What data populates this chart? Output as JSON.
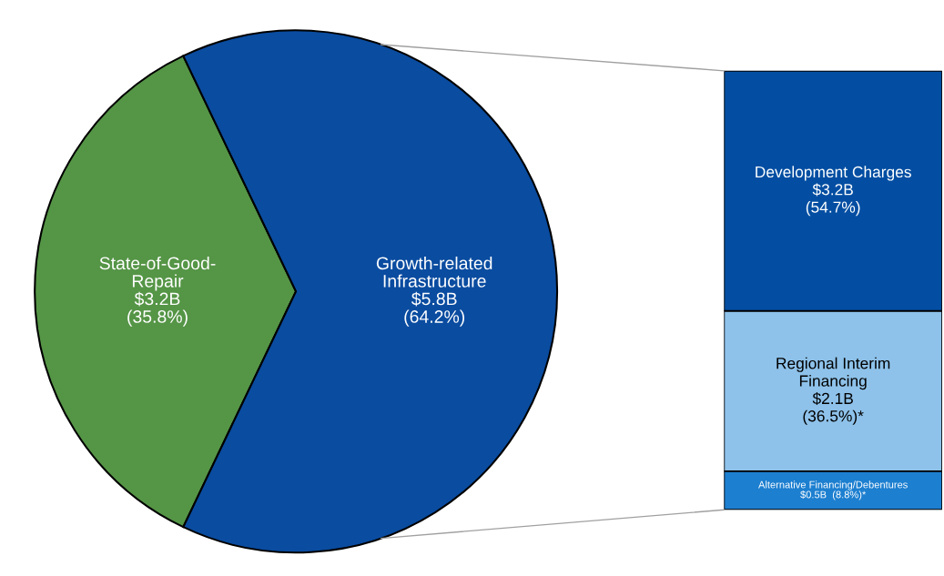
{
  "chart_data": [
    {
      "type": "pie",
      "categories": [
        "State-of-Good-\nRepair",
        "Growth-related\nInfrastructure"
      ],
      "values": [
        35.8,
        64.2
      ],
      "colors": [
        "#559546",
        "#0a4ca0"
      ],
      "value_labels": [
        "$3.2B\n(35.8%)",
        "$5.8B\n(64.2%)"
      ],
      "legend": false
    },
    {
      "type": "bar",
      "stacked": true,
      "categories": [
        null
      ],
      "legend": false,
      "tick_labels": false,
      "series": [
        {
          "name": "Alternative Financing/Debentures",
          "color": "#1d7fd0",
          "values": [
            8.8
          ],
          "value_labels": [
            "$0.5B  (8.8%)*"
          ]
        },
        {
          "name": "Regional Interim\nFinancing",
          "color": "#8ec2ea",
          "values": [
            36.5
          ],
          "value_labels": [
            "$2.1B\n(36.5%)*"
          ]
        },
        {
          "name": "Development Charges",
          "color": "#034ea2",
          "values": [
            54.7
          ],
          "value_labels": [
            "$3.2B\n(54.7%)"
          ]
        }
      ]
    }
  ]
}
